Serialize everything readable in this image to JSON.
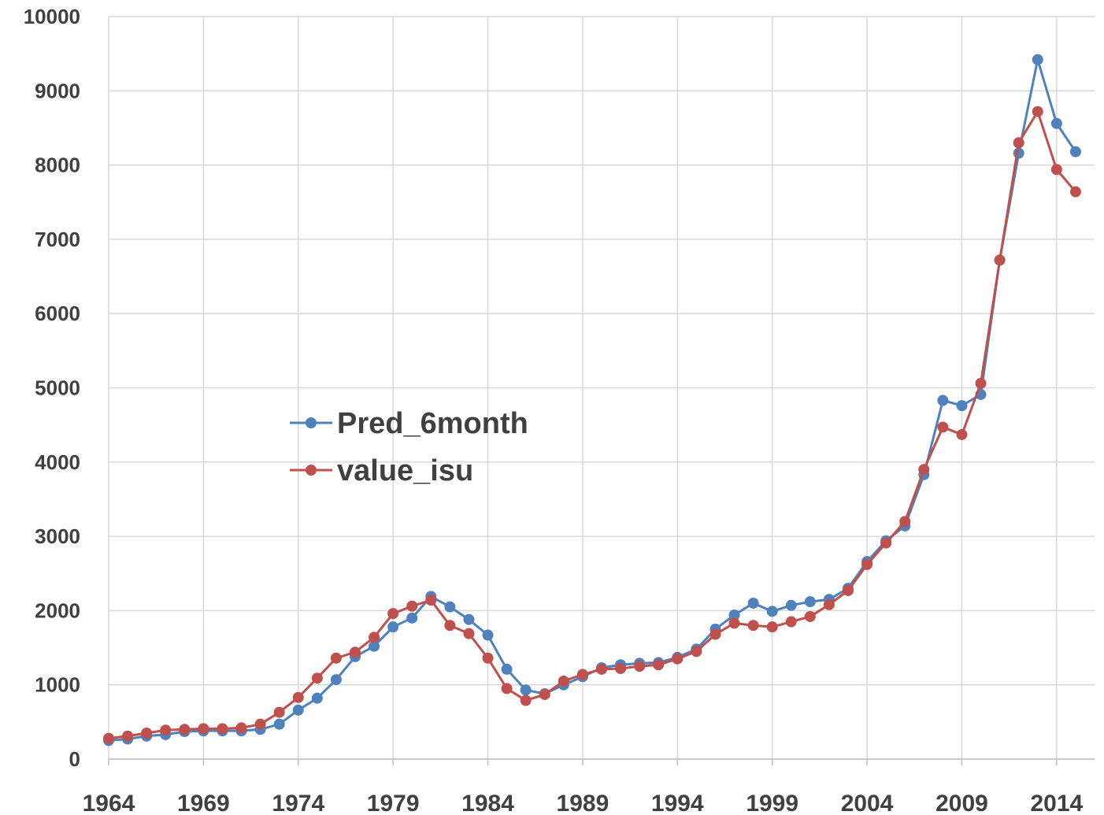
{
  "chart_data": {
    "type": "line",
    "x": [
      1964,
      1965,
      1966,
      1967,
      1968,
      1969,
      1970,
      1971,
      1972,
      1973,
      1974,
      1975,
      1976,
      1977,
      1978,
      1979,
      1980,
      1981,
      1982,
      1983,
      1984,
      1985,
      1986,
      1987,
      1988,
      1989,
      1990,
      1991,
      1992,
      1993,
      1994,
      1995,
      1996,
      1997,
      1998,
      1999,
      2000,
      2001,
      2002,
      2003,
      2004,
      2005,
      2006,
      2007,
      2008,
      2009,
      2010,
      2011,
      2012,
      2013,
      2014,
      2015
    ],
    "series": [
      {
        "name": "Pred_6month",
        "color": "#4f81bd",
        "values": [
          250,
          270,
          310,
          330,
          370,
          380,
          380,
          380,
          400,
          470,
          660,
          820,
          1070,
          1380,
          1520,
          1780,
          1900,
          2190,
          2050,
          1880,
          1670,
          1210,
          930,
          880,
          1000,
          1110,
          1230,
          1270,
          1290,
          1300,
          1370,
          1480,
          1750,
          1940,
          2100,
          1990,
          2070,
          2120,
          2150,
          2300,
          2660,
          2940,
          3140,
          3830,
          4830,
          4760,
          4910,
          6720,
          8160,
          9420,
          8560,
          8180
        ]
      },
      {
        "name": "value_isu",
        "color": "#c0504d",
        "values": [
          280,
          310,
          350,
          390,
          400,
          410,
          410,
          420,
          470,
          630,
          830,
          1090,
          1360,
          1440,
          1640,
          1960,
          2060,
          2140,
          1800,
          1690,
          1360,
          950,
          790,
          870,
          1050,
          1140,
          1210,
          1220,
          1250,
          1270,
          1350,
          1450,
          1680,
          1830,
          1800,
          1780,
          1850,
          1920,
          2080,
          2270,
          2620,
          2910,
          3200,
          3900,
          4470,
          4370,
          5060,
          6720,
          8300,
          8720,
          7940,
          7640
        ]
      }
    ],
    "xlim": [
      1964,
      2016
    ],
    "xticks": [
      1964,
      1969,
      1974,
      1979,
      1984,
      1989,
      1994,
      1999,
      2004,
      2009,
      2014
    ],
    "ylim": [
      0,
      10000
    ],
    "yticks": [
      0,
      1000,
      2000,
      3000,
      4000,
      5000,
      6000,
      7000,
      8000,
      9000,
      10000
    ],
    "grid": true
  }
}
